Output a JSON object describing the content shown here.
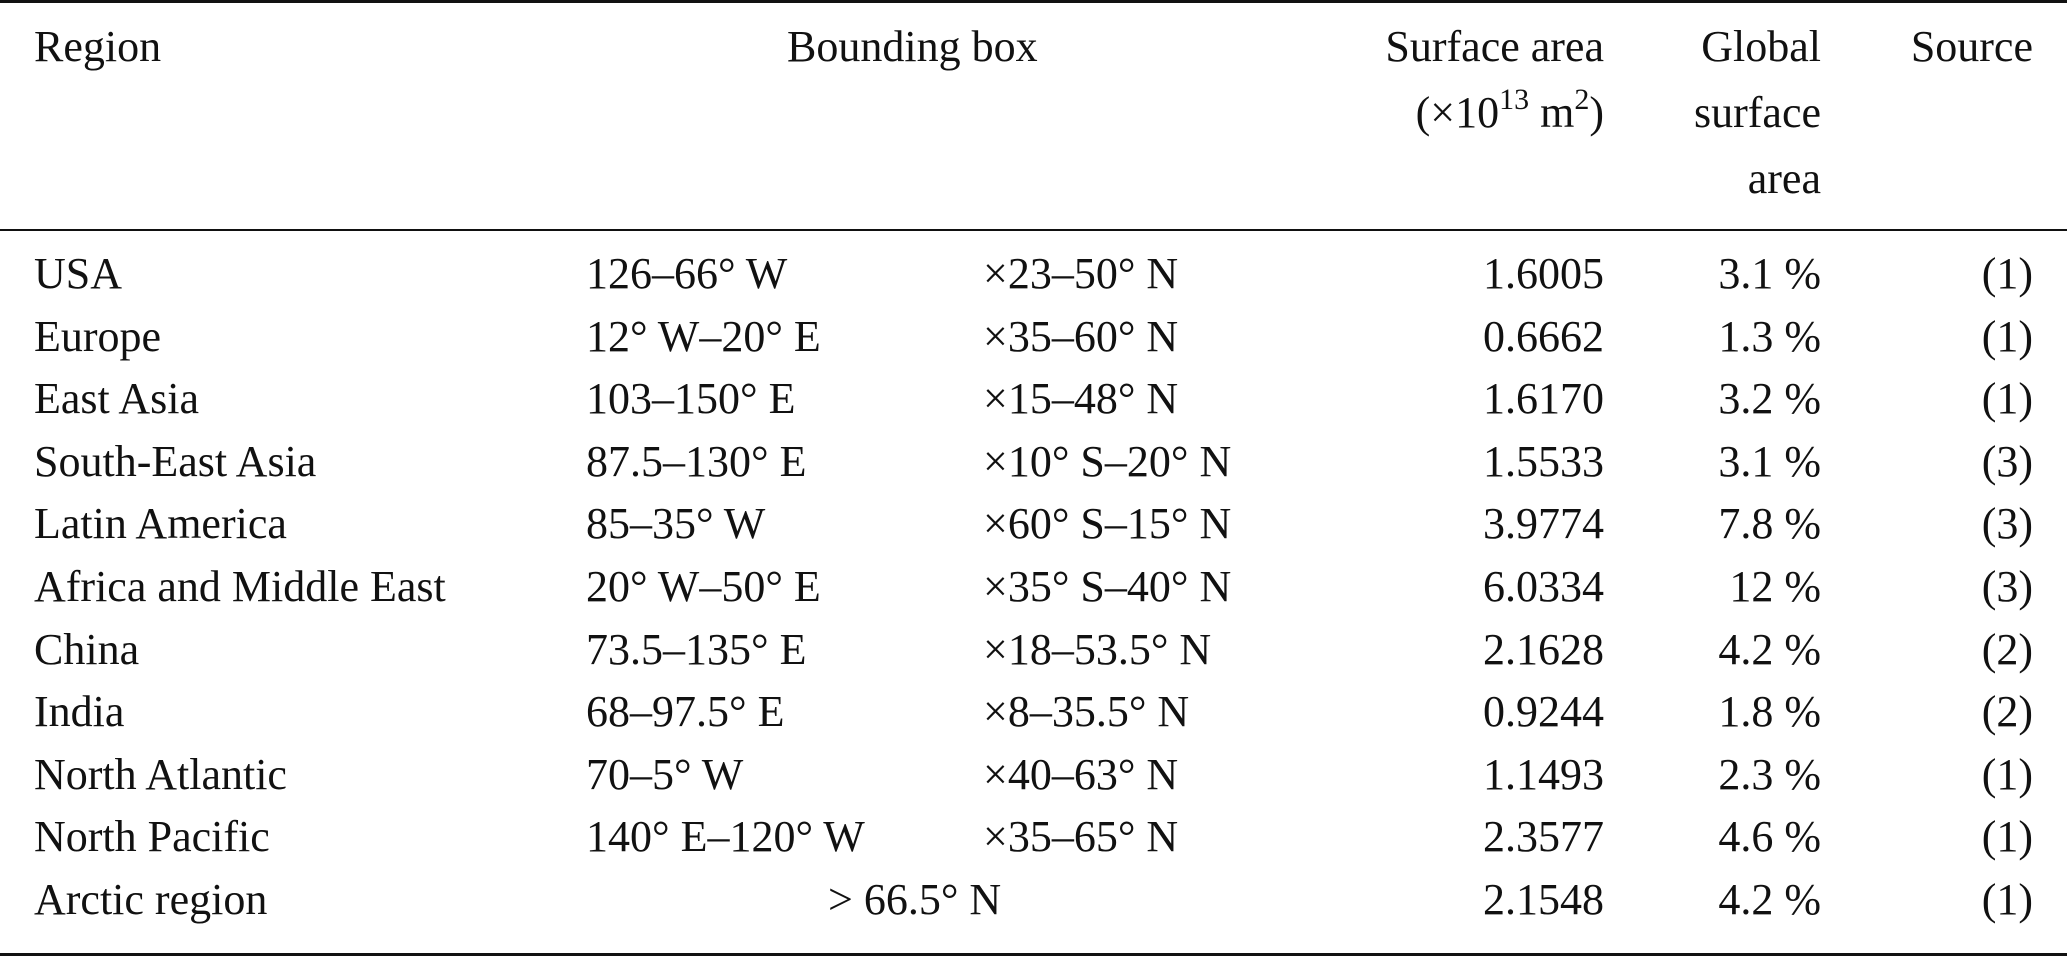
{
  "header": {
    "region": "Region",
    "bounding_box": "Bounding box",
    "surface_area_line1": "Surface area",
    "surface_area_line2_prefix": "(×10",
    "surface_area_line2_exp": "13",
    "surface_area_line2_mid": " m",
    "surface_area_line2_exp2": "2",
    "surface_area_line2_suffix": ")",
    "global_line1": "Global",
    "global_line2": "surface",
    "global_line3": "area",
    "source": "Source"
  },
  "rows": [
    {
      "region": "USA",
      "bb_lon": "126–66° W",
      "bb_lat": "×23–50° N",
      "area": "1.6005",
      "pct": "3.1 %",
      "source": "(1)"
    },
    {
      "region": "Europe",
      "bb_lon": "12° W–20° E",
      "bb_lat": "×35–60° N",
      "area": "0.6662",
      "pct": "1.3 %",
      "source": "(1)"
    },
    {
      "region": "East Asia",
      "bb_lon": "103–150° E",
      "bb_lat": "×15–48° N",
      "area": "1.6170",
      "pct": "3.2 %",
      "source": "(1)"
    },
    {
      "region": "South-East Asia",
      "bb_lon": "87.5–130° E",
      "bb_lat": "×10° S–20° N",
      "area": "1.5533",
      "pct": "3.1 %",
      "source": "(3)"
    },
    {
      "region": "Latin America",
      "bb_lon": "85–35° W",
      "bb_lat": "×60° S–15° N",
      "area": "3.9774",
      "pct": "7.8 %",
      "source": "(3)"
    },
    {
      "region": "Africa and Middle East",
      "bb_lon": "20° W–50° E",
      "bb_lat": "×35° S–40° N",
      "area": "6.0334",
      "pct": "12 %",
      "source": "(3)"
    },
    {
      "region": "China",
      "bb_lon": "73.5–135° E",
      "bb_lat": "×18–53.5° N",
      "area": "2.1628",
      "pct": "4.2 %",
      "source": "(2)"
    },
    {
      "region": "India",
      "bb_lon": "68–97.5° E",
      "bb_lat": "×8–35.5° N",
      "area": "0.9244",
      "pct": "1.8 %",
      "source": "(2)"
    },
    {
      "region": "North Atlantic",
      "bb_lon": "70–5° W",
      "bb_lat": "×40–63° N",
      "area": "1.1493",
      "pct": "2.3 %",
      "source": "(1)"
    },
    {
      "region": "North Pacific",
      "bb_lon": "140° E–120° W",
      "bb_lat": "×35–65° N",
      "area": "2.3577",
      "pct": "4.6 %",
      "source": "(1)"
    }
  ],
  "last_row": {
    "region": "Arctic region",
    "bb_span": "> 66.5° N",
    "area": "2.1548",
    "pct": "4.2 %",
    "source": "(1)"
  }
}
